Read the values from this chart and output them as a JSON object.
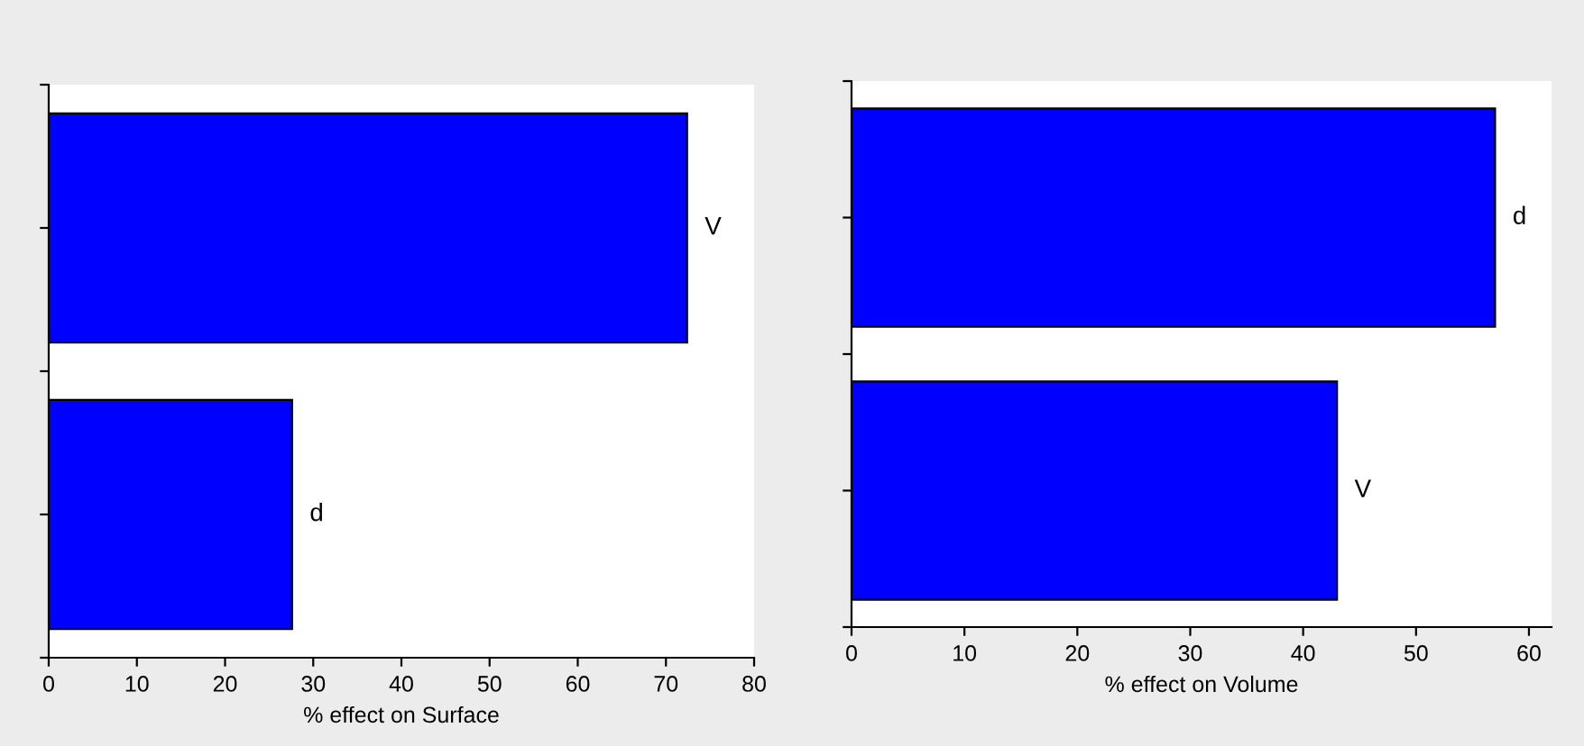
{
  "chart_data": [
    {
      "type": "bar",
      "orientation": "horizontal",
      "xlabel": "% effect on Surface",
      "categories": [
        "V",
        "d"
      ],
      "values": [
        72.4,
        27.6
      ],
      "color": "#0000ff",
      "xlim": [
        0,
        80
      ],
      "xticks": [
        0,
        10,
        20,
        30,
        40,
        50,
        60,
        70,
        80
      ],
      "grid": false
    },
    {
      "type": "bar",
      "orientation": "horizontal",
      "xlabel": "% effect on Volume",
      "categories": [
        "d",
        "V"
      ],
      "values": [
        57,
        43
      ],
      "color": "#0000ff",
      "xlim": [
        0,
        62
      ],
      "xticks": [
        0,
        10,
        20,
        30,
        40,
        50,
        60
      ],
      "grid": false
    }
  ]
}
